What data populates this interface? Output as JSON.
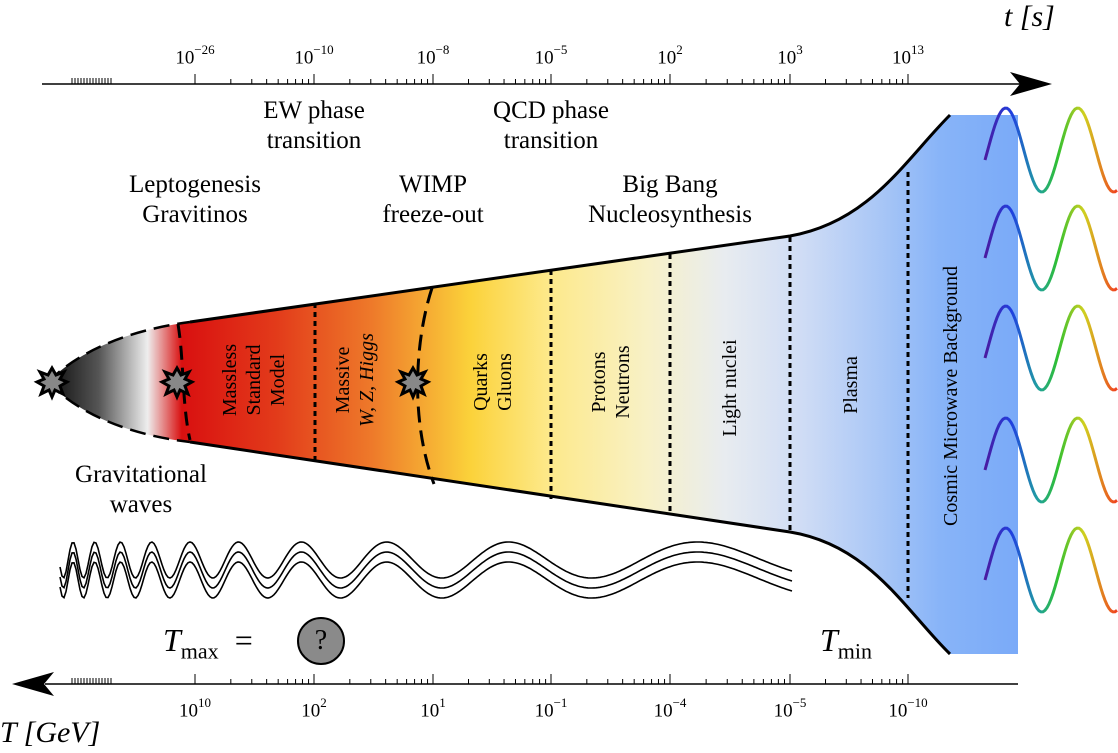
{
  "top_axis": {
    "title": "t [s]",
    "tick_labels": [
      {
        "base": "10",
        "exp": "−26"
      },
      {
        "base": "10",
        "exp": "−10"
      },
      {
        "base": "10",
        "exp": "−8"
      },
      {
        "base": "10",
        "exp": "−5"
      },
      {
        "base": "10",
        "exp": "2"
      },
      {
        "base": "10",
        "exp": "3"
      },
      {
        "base": "10",
        "exp": "13"
      }
    ]
  },
  "bottom_axis": {
    "title": "T [GeV]",
    "tick_labels": [
      {
        "base": "10",
        "exp": "10"
      },
      {
        "base": "10",
        "exp": "2"
      },
      {
        "base": "10",
        "exp": "1"
      },
      {
        "base": "10",
        "exp": "−1"
      },
      {
        "base": "10",
        "exp": "−4"
      },
      {
        "base": "10",
        "exp": "−5"
      },
      {
        "base": "10",
        "exp": "−10"
      }
    ]
  },
  "events": {
    "ew": [
      "EW phase",
      "transition"
    ],
    "qcd": [
      "QCD phase",
      "transition"
    ],
    "lepto": [
      "Leptogenesis",
      "Gravitinos"
    ],
    "wimp": [
      "WIMP",
      "freeze-out"
    ],
    "bbn": [
      "Big Bang",
      "Nucleosynthesis"
    ],
    "gw": [
      "Gravitational",
      "waves"
    ]
  },
  "eras": {
    "massless": [
      "Massless",
      "Standard",
      "Model"
    ],
    "massive": [
      "Massive",
      "W, Z, Higgs"
    ],
    "quarks": [
      "Quarks",
      "Gluons"
    ],
    "protons": [
      "Protons",
      "Neutrons"
    ],
    "light": "Light nuclei",
    "plasma": "Plasma",
    "cmb": "Cosmic Microwave Background"
  },
  "temps": {
    "tmax_sym": "T",
    "tmax_sub": "max",
    "eq": "=",
    "question": "?",
    "tmin_sym": "T",
    "tmin_sub": "min"
  }
}
